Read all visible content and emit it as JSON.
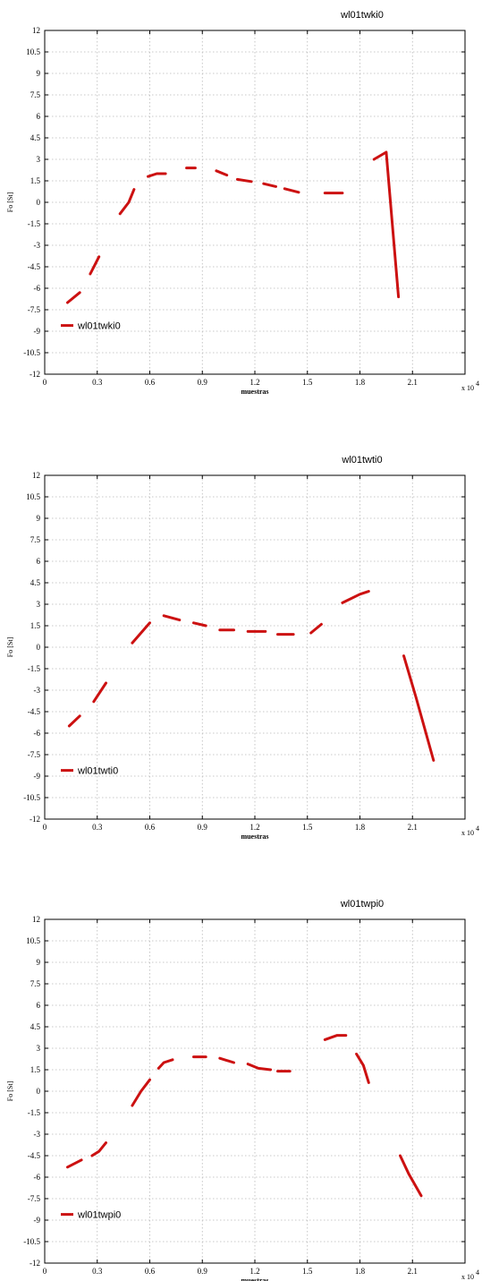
{
  "chart_data": [
    {
      "type": "line",
      "title": "wl01twki0",
      "xlabel": "muestras",
      "ylabel": "Fo [St]",
      "x_multiplier": "x 10",
      "x_multiplier_exp": "4",
      "xlim": [
        0,
        2.4
      ],
      "ylim": [
        -12,
        12
      ],
      "xticks": [
        "0",
        "0.3",
        "0.6",
        "0.9",
        "1.2",
        "1.5",
        "1.8",
        "2.1"
      ],
      "yticks": [
        "12",
        "10.5",
        "9",
        "7.5",
        "6",
        "4.5",
        "3",
        "1.5",
        "0",
        "-1.5",
        "-3",
        "-4.5",
        "-6",
        "-7.5",
        "-9",
        "-10.5",
        "-12"
      ],
      "grid": true,
      "legend": "lower-left",
      "color": "#cc1111",
      "series": [
        {
          "name": "wl01twki0",
          "segments": [
            [
              [
                0.13,
                -7.0
              ],
              [
                0.2,
                -6.3
              ]
            ],
            [
              [
                0.26,
                -5.0
              ],
              [
                0.31,
                -3.8
              ]
            ],
            [
              [
                0.43,
                -0.8
              ],
              [
                0.48,
                0.0
              ],
              [
                0.51,
                0.9
              ]
            ],
            [
              [
                0.59,
                1.8
              ],
              [
                0.64,
                2.0
              ],
              [
                0.69,
                2.0
              ]
            ],
            [
              [
                0.81,
                2.4
              ],
              [
                0.86,
                2.4
              ]
            ],
            [
              [
                0.98,
                2.2
              ],
              [
                1.04,
                1.9
              ]
            ],
            [
              [
                1.1,
                1.6
              ],
              [
                1.18,
                1.45
              ]
            ],
            [
              [
                1.25,
                1.3
              ],
              [
                1.32,
                1.1
              ]
            ],
            [
              [
                1.37,
                0.95
              ],
              [
                1.45,
                0.7
              ]
            ],
            [
              [
                1.6,
                0.65
              ],
              [
                1.7,
                0.65
              ]
            ],
            [
              [
                1.88,
                3.0
              ],
              [
                1.95,
                3.5
              ],
              [
                2.02,
                -6.6
              ]
            ]
          ]
        }
      ]
    },
    {
      "type": "line",
      "title": "wl01twti0",
      "xlabel": "muestras",
      "ylabel": "Fo [St]",
      "x_multiplier": "x 10",
      "x_multiplier_exp": "4",
      "xlim": [
        0,
        2.4
      ],
      "ylim": [
        -12,
        12
      ],
      "xticks": [
        "0",
        "0.3",
        "0.6",
        "0.9",
        "1.2",
        "1.5",
        "1.8",
        "2.1"
      ],
      "yticks": [
        "12",
        "10.5",
        "9",
        "7.5",
        "6",
        "4.5",
        "3",
        "1.5",
        "0",
        "-1.5",
        "-3",
        "-4.5",
        "-6",
        "-7.5",
        "-9",
        "-10.5",
        "-12"
      ],
      "grid": true,
      "legend": "lower-left",
      "color": "#cc1111",
      "series": [
        {
          "name": "wl01twti0",
          "segments": [
            [
              [
                0.14,
                -5.5
              ],
              [
                0.2,
                -4.8
              ]
            ],
            [
              [
                0.28,
                -3.8
              ],
              [
                0.35,
                -2.5
              ]
            ],
            [
              [
                0.5,
                0.3
              ],
              [
                0.55,
                1.0
              ],
              [
                0.6,
                1.7
              ]
            ],
            [
              [
                0.68,
                2.2
              ],
              [
                0.77,
                1.9
              ]
            ],
            [
              [
                0.85,
                1.7
              ],
              [
                0.92,
                1.5
              ]
            ],
            [
              [
                1.0,
                1.2
              ],
              [
                1.08,
                1.2
              ]
            ],
            [
              [
                1.16,
                1.1
              ],
              [
                1.26,
                1.1
              ]
            ],
            [
              [
                1.33,
                0.9
              ],
              [
                1.42,
                0.9
              ]
            ],
            [
              [
                1.52,
                1.0
              ],
              [
                1.58,
                1.6
              ]
            ],
            [
              [
                1.7,
                3.1
              ],
              [
                1.8,
                3.7
              ],
              [
                1.85,
                3.9
              ]
            ],
            [
              [
                2.05,
                -0.6
              ],
              [
                2.12,
                -3.5
              ],
              [
                2.22,
                -7.9
              ]
            ]
          ]
        }
      ]
    },
    {
      "type": "line",
      "title": "wl01twpi0",
      "xlabel": "muestras",
      "ylabel": "Fo [St]",
      "x_multiplier": "x 10",
      "x_multiplier_exp": "4",
      "xlim": [
        0,
        2.4
      ],
      "ylim": [
        -12,
        12
      ],
      "xticks": [
        "0",
        "0.3",
        "0.6",
        "0.9",
        "1.2",
        "1.5",
        "1.8",
        "2.1"
      ],
      "yticks": [
        "12",
        "10.5",
        "9",
        "7.5",
        "6",
        "4.5",
        "3",
        "1.5",
        "0",
        "-1.5",
        "-3",
        "-4.5",
        "-6",
        "-7.5",
        "-9",
        "-10.5",
        "-12"
      ],
      "grid": true,
      "legend": "lower-left",
      "color": "#cc1111",
      "series": [
        {
          "name": "wl01twpi0",
          "segments": [
            [
              [
                0.13,
                -5.3
              ],
              [
                0.21,
                -4.8
              ]
            ],
            [
              [
                0.27,
                -4.5
              ],
              [
                0.31,
                -4.2
              ],
              [
                0.35,
                -3.6
              ]
            ],
            [
              [
                0.5,
                -1.0
              ],
              [
                0.55,
                0.0
              ],
              [
                0.6,
                0.8
              ]
            ],
            [
              [
                0.65,
                1.6
              ],
              [
                0.68,
                2.0
              ],
              [
                0.73,
                2.2
              ]
            ],
            [
              [
                0.85,
                2.4
              ],
              [
                0.92,
                2.4
              ]
            ],
            [
              [
                1.0,
                2.3
              ],
              [
                1.08,
                2.0
              ]
            ],
            [
              [
                1.16,
                1.9
              ],
              [
                1.22,
                1.6
              ],
              [
                1.29,
                1.5
              ]
            ],
            [
              [
                1.33,
                1.4
              ],
              [
                1.4,
                1.4
              ]
            ],
            [
              [
                1.6,
                3.6
              ],
              [
                1.67,
                3.9
              ],
              [
                1.72,
                3.9
              ]
            ],
            [
              [
                1.78,
                2.6
              ],
              [
                1.82,
                1.8
              ],
              [
                1.85,
                0.6
              ]
            ],
            [
              [
                2.03,
                -4.5
              ],
              [
                2.08,
                -5.8
              ],
              [
                2.15,
                -7.3
              ]
            ]
          ]
        }
      ]
    }
  ]
}
